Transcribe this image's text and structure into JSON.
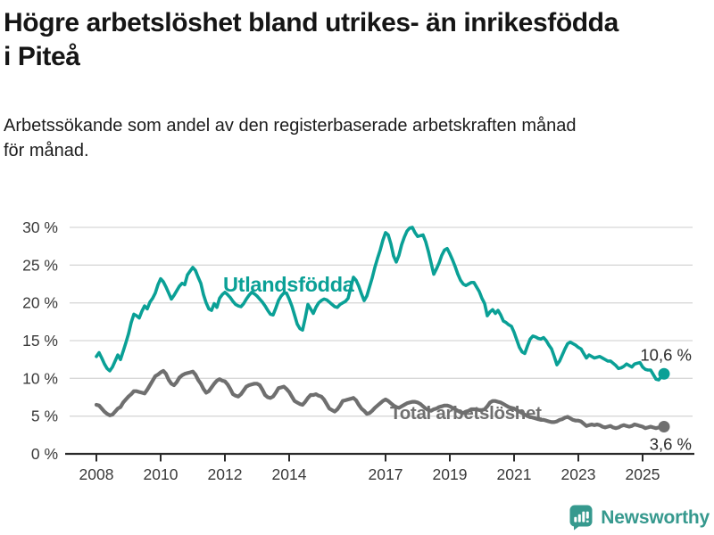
{
  "header": {
    "title": "Högre arbetslöshet bland utrikes- än inrikesfödda i Piteå",
    "subtitle": "Arbetssökande som andel av den registerbaserade arbetskraften månad för månad."
  },
  "colors": {
    "accent_teal": "#0aa096",
    "series_gray": "#6f6f6f",
    "grid": "#d8d8d8",
    "axis": "#2a2a2a",
    "axis_text": "#3a3a3a",
    "value_label_text": "#2b2b2b",
    "brand_teal": "#36998e"
  },
  "footer": {
    "brand": "Newsworthy",
    "logo_icon": "speech-bubble-bar-chart"
  },
  "chart_data": {
    "type": "line",
    "title": "Högre arbetslöshet bland utrikes- än inrikesfödda i Piteå",
    "subtitle": "Arbetssökande som andel av den registerbaserade arbetskraften månad för månad.",
    "unit": "%",
    "frequency": "monthly",
    "x_start": "2008-01",
    "x_end": "2025-09",
    "ylim": [
      0,
      30
    ],
    "grid": "horizontal",
    "legend_position": "inline-labels",
    "y_ticks": [
      {
        "value": 30,
        "label": "30 %"
      },
      {
        "value": 25,
        "label": "25 %"
      },
      {
        "value": 20,
        "label": "20 %"
      },
      {
        "value": 15,
        "label": "15 %"
      },
      {
        "value": 10,
        "label": "10 %"
      },
      {
        "value": 5,
        "label": "5 %"
      },
      {
        "value": 0,
        "label": "0 %"
      }
    ],
    "x_ticks": [
      {
        "year": 2008,
        "label": "2008"
      },
      {
        "year": 2010,
        "label": "2010"
      },
      {
        "year": 2012,
        "label": "2012"
      },
      {
        "year": 2014,
        "label": "2014"
      },
      {
        "year": 2017,
        "label": "2017"
      },
      {
        "year": 2019,
        "label": "2019"
      },
      {
        "year": 2021,
        "label": "2021"
      },
      {
        "year": 2023,
        "label": "2023"
      },
      {
        "year": 2025,
        "label": "2025"
      }
    ],
    "series": [
      {
        "id": "total",
        "name": "Total arbetslöshet",
        "color": "#6f6f6f",
        "end_label": "3,6 %",
        "last_value": 3.6,
        "values": [
          6.5,
          6.4,
          6.0,
          5.6,
          5.3,
          5.1,
          5.2,
          5.6,
          6.0,
          6.2,
          6.8,
          7.2,
          7.6,
          7.9,
          8.3,
          8.3,
          8.2,
          8.1,
          8.0,
          8.5,
          9.1,
          9.7,
          10.3,
          10.5,
          10.8,
          11.0,
          10.6,
          9.8,
          9.3,
          9.1,
          9.5,
          10.1,
          10.4,
          10.6,
          10.7,
          10.8,
          10.9,
          10.5,
          9.8,
          9.3,
          8.6,
          8.1,
          8.3,
          8.8,
          9.3,
          9.7,
          9.9,
          9.7,
          9.6,
          9.2,
          8.6,
          7.9,
          7.7,
          7.6,
          7.9,
          8.4,
          8.9,
          9.1,
          9.2,
          9.3,
          9.3,
          9.1,
          8.5,
          7.8,
          7.5,
          7.4,
          7.6,
          8.1,
          8.7,
          8.8,
          8.9,
          8.6,
          8.2,
          7.6,
          7.0,
          6.8,
          6.6,
          6.5,
          6.9,
          7.4,
          7.8,
          7.8,
          7.9,
          7.7,
          7.6,
          7.2,
          6.6,
          6.0,
          5.8,
          5.6,
          5.9,
          6.4,
          7.0,
          7.1,
          7.2,
          7.3,
          7.4,
          7.1,
          6.5,
          6.0,
          5.7,
          5.3,
          5.4,
          5.7,
          6.1,
          6.4,
          6.7,
          7.0,
          7.2,
          7.0,
          6.7,
          6.4,
          6.2,
          6.1,
          6.3,
          6.5,
          6.7,
          6.8,
          6.9,
          6.9,
          6.8,
          6.6,
          6.3,
          6.0,
          5.8,
          5.7,
          5.9,
          6.0,
          6.2,
          6.3,
          6.4,
          6.4,
          6.3,
          6.1,
          5.9,
          5.7,
          5.5,
          5.4,
          5.6,
          5.7,
          5.9,
          5.9,
          5.9,
          5.8,
          5.8,
          5.9,
          6.3,
          6.8,
          7.0,
          7.0,
          6.9,
          6.8,
          6.6,
          6.4,
          6.2,
          6.1,
          6.0,
          5.8,
          5.6,
          5.4,
          5.2,
          5.0,
          4.9,
          4.8,
          4.7,
          4.6,
          4.5,
          4.5,
          4.4,
          4.3,
          4.2,
          4.2,
          4.3,
          4.5,
          4.6,
          4.8,
          4.9,
          4.7,
          4.5,
          4.4,
          4.4,
          4.3,
          4.0,
          3.7,
          3.8,
          3.9,
          3.8,
          3.9,
          3.8,
          3.6,
          3.5,
          3.6,
          3.7,
          3.5,
          3.4,
          3.5,
          3.7,
          3.8,
          3.7,
          3.6,
          3.7,
          3.9,
          3.8,
          3.7,
          3.6,
          3.4,
          3.5,
          3.6,
          3.5,
          3.4,
          3.5,
          3.6,
          3.6
        ]
      },
      {
        "id": "utlandsfodda",
        "name": "Utlandsfödda",
        "color": "#0aa096",
        "end_label": "10,6 %",
        "last_value": 10.6,
        "values": [
          12.9,
          13.4,
          12.7,
          11.9,
          11.3,
          11.0,
          11.5,
          12.3,
          13.1,
          12.5,
          13.6,
          14.7,
          15.9,
          17.4,
          18.5,
          18.3,
          18.0,
          18.9,
          19.6,
          19.2,
          20.1,
          20.6,
          21.3,
          22.4,
          23.2,
          22.8,
          22.1,
          21.3,
          20.5,
          21.0,
          21.6,
          22.2,
          22.6,
          22.4,
          23.7,
          24.2,
          24.7,
          24.3,
          23.4,
          22.6,
          21.1,
          20.0,
          19.2,
          19.0,
          19.9,
          19.4,
          20.6,
          21.1,
          21.4,
          21.1,
          20.7,
          20.2,
          19.8,
          19.6,
          19.5,
          19.9,
          20.5,
          21.0,
          21.4,
          21.2,
          20.9,
          20.5,
          20.1,
          19.6,
          19.0,
          18.5,
          18.4,
          19.3,
          20.3,
          20.9,
          21.3,
          21.3,
          20.5,
          19.6,
          18.4,
          17.2,
          16.6,
          16.4,
          18.0,
          19.8,
          19.2,
          18.6,
          19.4,
          20.0,
          20.3,
          20.5,
          20.4,
          20.1,
          19.8,
          19.5,
          19.4,
          19.8,
          20.0,
          20.2,
          20.6,
          22.0,
          23.4,
          23.0,
          22.2,
          21.2,
          20.3,
          20.9,
          22.1,
          23.3,
          24.7,
          25.9,
          27.0,
          28.3,
          29.3,
          29.0,
          27.8,
          26.2,
          25.4,
          26.3,
          27.7,
          28.7,
          29.5,
          29.9,
          30.0,
          29.3,
          28.8,
          28.9,
          29.0,
          28.1,
          26.8,
          25.3,
          23.8,
          24.5,
          25.3,
          26.3,
          27.0,
          27.2,
          26.5,
          25.7,
          24.8,
          23.8,
          23.0,
          22.5,
          22.3,
          22.5,
          22.7,
          22.7,
          22.1,
          21.5,
          20.6,
          19.9,
          18.3,
          18.8,
          19.1,
          18.6,
          19.0,
          18.4,
          17.6,
          17.4,
          17.1,
          16.9,
          16.1,
          15.1,
          14.1,
          13.5,
          13.3,
          14.3,
          15.2,
          15.6,
          15.5,
          15.3,
          15.2,
          15.4,
          15.0,
          14.4,
          13.9,
          12.9,
          11.8,
          12.3,
          13.1,
          13.9,
          14.6,
          14.8,
          14.6,
          14.4,
          14.1,
          13.9,
          13.3,
          12.7,
          13.1,
          12.9,
          12.7,
          12.8,
          12.9,
          12.7,
          12.5,
          12.3,
          12.3,
          12.0,
          11.7,
          11.3,
          11.4,
          11.6,
          11.9,
          11.7,
          11.5,
          11.9,
          12.0,
          12.1,
          11.5,
          11.2,
          11.1,
          11.1,
          10.5,
          9.9,
          9.8,
          10.2,
          10.6
        ]
      }
    ]
  }
}
